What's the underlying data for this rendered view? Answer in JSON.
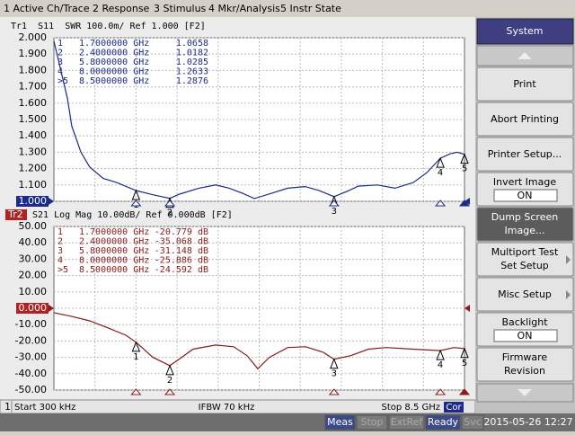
{
  "menu": [
    "1 Active Ch/Trace",
    "2 Response",
    "3 Stimulus",
    "4 Mkr/Analysis",
    "5 Instr State"
  ],
  "chart_data": [
    {
      "type": "line",
      "title": "Tr1  S11  SWR 100.0m/ Ref 1.000 [F2]",
      "color": "#1c2a8c",
      "ref_level": 1,
      "xlim": [
        0.0003,
        8.5
      ],
      "ylim": [
        1,
        2
      ],
      "grid": true,
      "yticks": [
        {
          "value": 1,
          "label": "1.000"
        },
        {
          "value": 1.1,
          "label": "1.100"
        },
        {
          "value": 1.2,
          "label": "1.200"
        },
        {
          "value": 1.3,
          "label": "1.300"
        },
        {
          "value": 1.4,
          "label": "1.400"
        },
        {
          "value": 1.5,
          "label": "1.500"
        },
        {
          "value": 1.6,
          "label": "1.600"
        },
        {
          "value": 1.7,
          "label": "1.700"
        },
        {
          "value": 1.8,
          "label": "1.800"
        },
        {
          "value": 1.9,
          "label": "1.900"
        },
        {
          "value": 2,
          "label": "2.000"
        }
      ],
      "x": [
        0.0003,
        0.28,
        0.37,
        0.56,
        0.74,
        1.02,
        1.3,
        1.7,
        2.05,
        2.4,
        2.6,
        3.0,
        3.35,
        3.63,
        3.9,
        4.15,
        4.46,
        4.84,
        5.2,
        5.5,
        5.8,
        6.1,
        6.3,
        6.7,
        7.06,
        7.44,
        7.72,
        8.0,
        8.2,
        8.35,
        8.5
      ],
      "series": [
        {
          "values": [
            1.98,
            1.63,
            1.46,
            1.3,
            1.21,
            1.14,
            1.115,
            1.0658,
            1.04,
            1.0182,
            1.044,
            1.08,
            1.1,
            1.08,
            1.05,
            1.017,
            1.045,
            1.08,
            1.09,
            1.065,
            1.0285,
            1.065,
            1.093,
            1.1,
            1.08,
            1.115,
            1.175,
            1.2633,
            1.29,
            1.3,
            1.2876
          ]
        }
      ],
      "markers": [
        {
          "id": "1",
          "tag": "1",
          "x": 1.7,
          "x_label": "1.7000000 GHz",
          "value": 1.0658,
          "value_label": "1.0658"
        },
        {
          "id": "2",
          "tag": "2",
          "x": 2.4,
          "x_label": "2.4000000 GHz",
          "value": 1.0182,
          "value_label": "1.0182"
        },
        {
          "id": "3",
          "tag": "3",
          "x": 5.8,
          "x_label": "5.8000000 GHz",
          "value": 1.0285,
          "value_label": "1.0285"
        },
        {
          "id": "4",
          "tag": "4",
          "x": 8.0,
          "x_label": "8.0000000 GHz",
          "value": 1.2633,
          "value_label": "1.2633"
        },
        {
          "id": ">5",
          "tag": "5",
          "x": 8.5,
          "x_label": "8.5000000 GHz",
          "value": 1.2876,
          "value_label": "1.2876"
        }
      ]
    },
    {
      "type": "line",
      "trace": "Tr2",
      "title": "S21 Log Mag 10.00dB/ Ref 0.000dB [F2]",
      "color": "#8b1a1a",
      "ref_level": 0,
      "xlim": [
        0.0003,
        8.5
      ],
      "ylim": [
        -50,
        50
      ],
      "grid": true,
      "yticks": [
        {
          "value": -50,
          "label": "-50.00"
        },
        {
          "value": -40,
          "label": "-40.00"
        },
        {
          "value": -30,
          "label": "-30.00"
        },
        {
          "value": -20,
          "label": "-20.00"
        },
        {
          "value": -10,
          "label": "-10.00"
        },
        {
          "value": 0,
          "label": "0.000"
        },
        {
          "value": 10,
          "label": "10.00"
        },
        {
          "value": 20,
          "label": "20.00"
        },
        {
          "value": 30,
          "label": "30.00"
        },
        {
          "value": 40,
          "label": "40.00"
        },
        {
          "value": 50,
          "label": "50.00"
        }
      ],
      "x": [
        0.0003,
        0.37,
        0.74,
        1.12,
        1.49,
        1.7,
        2.05,
        2.4,
        2.6,
        2.88,
        3.35,
        3.72,
        4.0,
        4.22,
        4.46,
        4.84,
        5.21,
        5.58,
        5.8,
        6.14,
        6.51,
        6.88,
        7.44,
        8.0,
        8.28,
        8.5
      ],
      "series": [
        {
          "values": [
            -2.7,
            -5,
            -7.7,
            -12,
            -16.5,
            -20.779,
            -30,
            -35.068,
            -31,
            -25,
            -22.5,
            -23.5,
            -29,
            -37,
            -30,
            -24,
            -23.5,
            -27,
            -31.148,
            -29,
            -25,
            -24,
            -25,
            -25.886,
            -24,
            -24.592
          ]
        }
      ],
      "markers": [
        {
          "id": "1",
          "tag": "1",
          "x": 1.7,
          "x_label": "1.7000000 GHz",
          "value": -20.779,
          "value_label": "-20.779 dB"
        },
        {
          "id": "2",
          "tag": "2",
          "x": 2.4,
          "x_label": "2.4000000 GHz",
          "value": -35.068,
          "value_label": "-35.068 dB"
        },
        {
          "id": "3",
          "tag": "3",
          "x": 5.8,
          "x_label": "5.8000000 GHz",
          "value": -31.148,
          "value_label": "-31.148 dB"
        },
        {
          "id": "4",
          "tag": "4",
          "x": 8.0,
          "x_label": "8.0000000 GHz",
          "value": -25.886,
          "value_label": "-25.886 dB"
        },
        {
          "id": ">5",
          "tag": "5",
          "x": 8.5,
          "x_label": "8.5000000 GHz",
          "value": -24.592,
          "value_label": "-24.592 dB"
        }
      ]
    }
  ],
  "channel_footer": {
    "channel": "1",
    "start": "Start 300 kHz",
    "ifbw": "IFBW 70 kHz",
    "stop": "Stop 8.5 GHz",
    "cor": "Cor"
  },
  "status": [
    "Meas",
    "Stop",
    "ExtRef",
    "Ready",
    "Svc"
  ],
  "datetime": "2015-05-26 12:27",
  "softkeys": {
    "title": "System",
    "keys": [
      {
        "label": "Print"
      },
      {
        "label": "Abort Printing"
      },
      {
        "label": "Printer Setup..."
      },
      {
        "label": "Invert Image",
        "state": "ON"
      },
      {
        "label": "Dump Screen Image...",
        "selected": true
      },
      {
        "label": "Multiport Test Set Setup",
        "submenu": true
      },
      {
        "label": "Misc Setup",
        "submenu": true
      },
      {
        "label": "Backlight",
        "state": "ON"
      },
      {
        "label": "Firmware Revision"
      }
    ]
  }
}
